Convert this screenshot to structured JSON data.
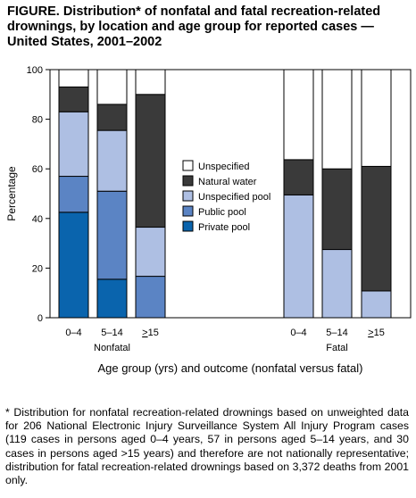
{
  "title": "FIGURE. Distribution* of nonfatal and fatal recreation-related drownings, by location and age group for reported cases — United States, 2001–2002",
  "colors": {
    "Unspecified": "#ffffff",
    "Natural water": "#3a3a3a",
    "Unspecified pool": "#aebfe3",
    "Public pool": "#5b84c4",
    "Private pool": "#0a64ad"
  },
  "chart_data": {
    "type": "bar",
    "stacked": true,
    "ylabel": "Percentage",
    "xlabel": "Age group (yrs) and outcome (nonfatal versus fatal)",
    "ylim": [
      0,
      100
    ],
    "yticks": [
      0,
      20,
      40,
      60,
      80,
      100
    ],
    "categories": [
      "0–4",
      "5–14",
      ">15",
      "0–4",
      "5–14",
      ">15"
    ],
    "groups": [
      {
        "label": "Nonfatal",
        "categories": [
          "0–4",
          "5–14",
          ">15"
        ]
      },
      {
        "label": "Fatal",
        "categories": [
          "0–4",
          "5–14",
          ">15"
        ]
      }
    ],
    "series": [
      {
        "name": "Private pool",
        "values": [
          42.5,
          15.5,
          0,
          0,
          0,
          0
        ]
      },
      {
        "name": "Public pool",
        "values": [
          14.5,
          35.5,
          16.7,
          0,
          0,
          0
        ]
      },
      {
        "name": "Unspecified pool",
        "values": [
          26,
          24.5,
          19.8,
          49.5,
          27.5,
          10.8
        ]
      },
      {
        "name": "Natural water",
        "values": [
          10,
          10.5,
          53.5,
          14.2,
          32.5,
          50.2
        ]
      },
      {
        "name": "Unspecified",
        "values": [
          7,
          14,
          10,
          36.3,
          40,
          39
        ]
      }
    ],
    "legend": {
      "position": "center",
      "items": [
        "Unspecified",
        "Natural water",
        "Unspecified pool",
        "Public pool",
        "Private pool"
      ]
    },
    "grid": false
  },
  "footnote": "* Distribution for nonfatal recreation-related drownings based on unweighted data for 206 National Electronic Injury Surveillance System All Injury Program cases (119 cases in persons aged 0–4 years, 57 in persons aged 5–14 years, and 30 cases in persons aged >15 years) and therefore are not nationally representative; distribution for fatal recreation-related drownings based on 3,372 deaths from 2001 only."
}
